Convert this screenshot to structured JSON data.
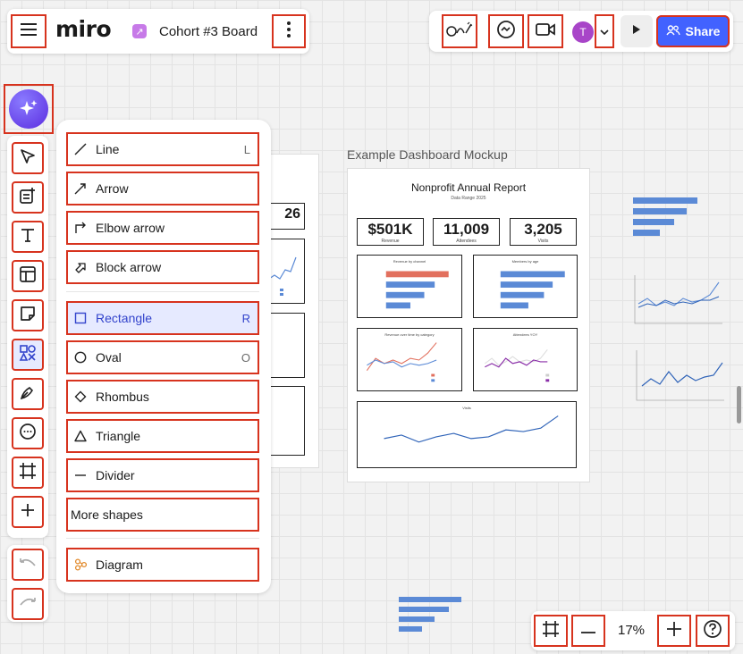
{
  "header": {
    "logo": "miro",
    "board_title": "Cohort #3 Board",
    "avatar_initial": "T",
    "share_label": "Share"
  },
  "shapes_menu": {
    "items": [
      {
        "label": "Line",
        "key": "L"
      },
      {
        "label": "Arrow",
        "key": ""
      },
      {
        "label": "Elbow arrow",
        "key": ""
      },
      {
        "label": "Block arrow",
        "key": ""
      },
      {
        "label": "Rectangle",
        "key": "R"
      },
      {
        "label": "Oval",
        "key": "O"
      },
      {
        "label": "Rhombus",
        "key": ""
      },
      {
        "label": "Triangle",
        "key": ""
      },
      {
        "label": "Divider",
        "key": ""
      },
      {
        "label": "More shapes",
        "key": ""
      },
      {
        "label": "Diagram",
        "key": ""
      }
    ]
  },
  "canvas": {
    "frame_label": "Example Dashboard Mockup",
    "partial_kpi": "26",
    "report": {
      "title": "Nonprofit Annual Report",
      "subtitle": "Data Range 2025",
      "kpis": [
        {
          "value": "$501K",
          "label": "Revenue"
        },
        {
          "value": "11,009",
          "label": "Attendees"
        },
        {
          "value": "3,205",
          "label": "Visits"
        }
      ],
      "chart_titles": [
        "Revenue by channel",
        "Members by age",
        "Revenue over time by category",
        "Attendees YOY",
        "Visits"
      ]
    }
  },
  "zoom": {
    "level": "17%"
  },
  "colors": {
    "accent": "#4262ff",
    "highlight": "#d7331e",
    "chart_blue": "#5b8ad6",
    "chart_red": "#e2705e",
    "chart_purple": "#8a2ea8"
  }
}
